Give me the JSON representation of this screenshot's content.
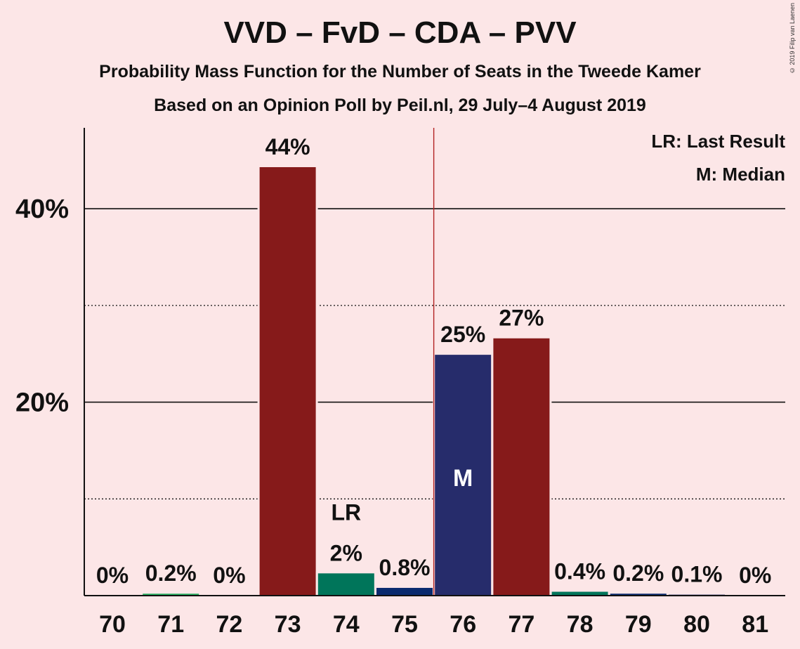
{
  "chart_data": {
    "type": "bar",
    "title": "VVD – FvD – CDA – PVV",
    "subtitle": "Probability Mass Function for the Number of Seats in the Tweede Kamer",
    "subtitle2": "Based on an Opinion Poll by Peil.nl, 29 July–4 August 2019",
    "copyright": "© 2019 Filip van Laenen",
    "legend": [
      "LR: Last Result",
      "M: Median"
    ],
    "legend_position": "top-right",
    "categories": [
      "70",
      "71",
      "72",
      "73",
      "74",
      "75",
      "76",
      "77",
      "78",
      "79",
      "80",
      "81"
    ],
    "values": [
      0,
      0.2,
      0,
      44.3,
      2.3,
      0.8,
      24.9,
      26.6,
      0.4,
      0.2,
      0.1,
      0
    ],
    "value_labels": [
      "0%",
      "0.2%",
      "0%",
      "44%",
      "2%",
      "0.8%",
      "25%",
      "27%",
      "0.4%",
      "0.2%",
      "0.1%",
      "0%"
    ],
    "bar_colors": [
      "#861a1a",
      "#27ae60",
      "#861a1a",
      "#861a1a",
      "#00755a",
      "#0a2a6e",
      "#262c6b",
      "#861a1a",
      "#00755a",
      "#0a2a6e",
      "#262c6b",
      "#861a1a"
    ],
    "y_ticks": [
      20,
      40
    ],
    "y_tick_labels": [
      "20%",
      "40%"
    ],
    "minor_gridlines": [
      10,
      30
    ],
    "ylim": [
      0,
      48
    ],
    "last_result_category": "74",
    "last_result_label": "LR",
    "median_category": "76",
    "median_label": "M",
    "majority_line_between": [
      "75",
      "76"
    ],
    "majority_line_color": "#b22222",
    "grid": true
  }
}
